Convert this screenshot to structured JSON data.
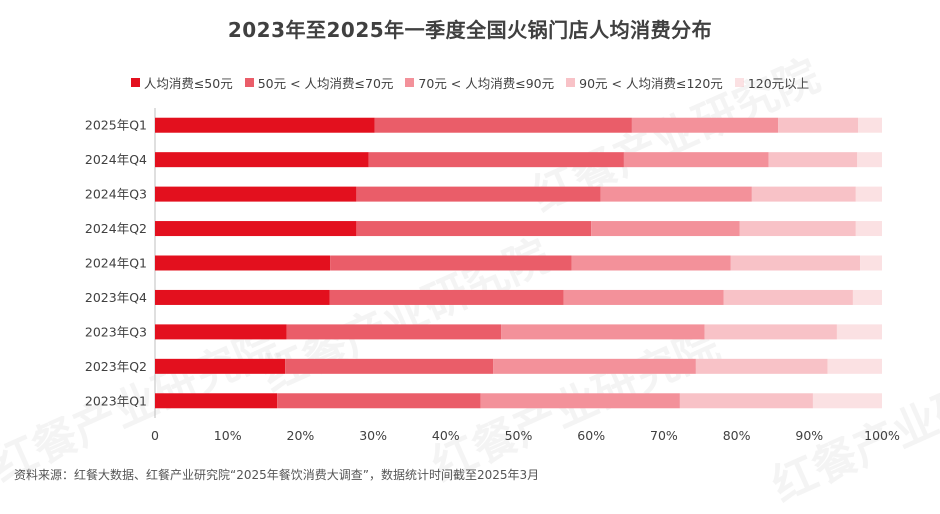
{
  "chart_data": {
    "type": "bar",
    "orientation": "horizontal",
    "stacked": true,
    "title": "2023年至2025年一季度全国火锅门店人均消费分布",
    "categories": [
      "2025年Q1",
      "2024年Q4",
      "2024年Q3",
      "2024年Q2",
      "2024年Q1",
      "2023年Q4",
      "2023年Q3",
      "2023年Q2",
      "2023年Q1"
    ],
    "series": [
      {
        "name": "人均消费≤50元",
        "color": "#e3101e",
        "values": [
          30.2,
          29.4,
          27.7,
          27.7,
          24.1,
          24.0,
          18.1,
          17.9,
          16.8
        ]
      },
      {
        "name": "50元 < 人均消费≤70元",
        "color": "#ea5d69",
        "values": [
          35.4,
          35.1,
          33.6,
          32.3,
          33.2,
          32.2,
          29.5,
          28.6,
          28.0
        ]
      },
      {
        "name": "70元 < 人均消费≤90元",
        "color": "#f3919a",
        "values": [
          20.1,
          19.9,
          20.8,
          20.4,
          21.9,
          22.0,
          28.0,
          27.9,
          27.4
        ]
      },
      {
        "name": "90元 < 人均消费≤120元",
        "color": "#f8c2c7",
        "values": [
          11.0,
          12.2,
          14.3,
          16.0,
          17.8,
          17.8,
          18.2,
          18.1,
          18.3
        ]
      },
      {
        "name": "120元以上",
        "color": "#fbe1e3",
        "values": [
          3.3,
          3.4,
          3.6,
          3.6,
          3.0,
          4.0,
          6.2,
          7.5,
          9.5
        ]
      }
    ],
    "x_ticks": [
      "0",
      "10%",
      "20%",
      "30%",
      "40%",
      "50%",
      "60%",
      "70%",
      "80%",
      "90%",
      "100%"
    ],
    "xlim": [
      0,
      100
    ],
    "grid": false,
    "legend_position": "top"
  },
  "source_text": "资料来源：红餐大数据、红餐产业研究院“2025年餐饮消费大调查”，数据统计时间截至2025年3月",
  "watermark_text": "红餐产业研究院"
}
